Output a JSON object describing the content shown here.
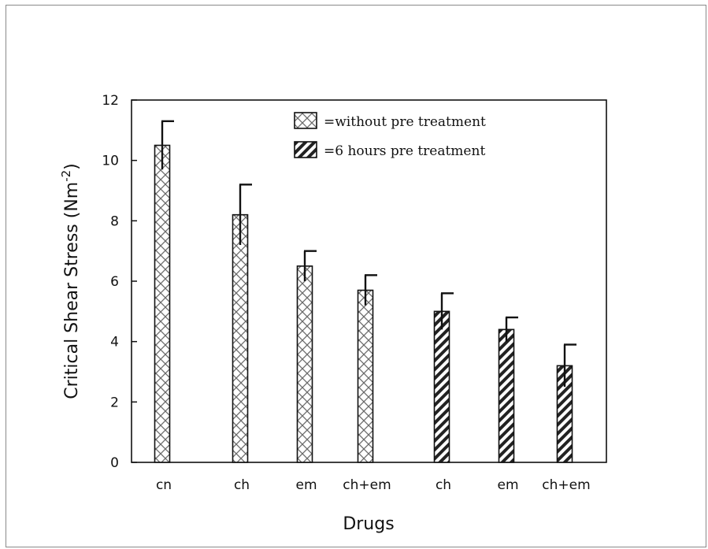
{
  "chart_data": {
    "type": "bar",
    "categories": [
      "cn",
      "ch",
      "em",
      "ch+em",
      "ch",
      "em",
      "ch+em"
    ],
    "values": [
      10.5,
      8.2,
      6.5,
      5.7,
      5.0,
      4.4,
      3.2
    ],
    "errors": [
      0.8,
      1.0,
      0.5,
      0.5,
      0.6,
      0.4,
      0.7
    ],
    "groups": [
      "without",
      "without",
      "without",
      "without",
      "6h",
      "6h",
      "6h"
    ],
    "title": "",
    "xlabel": "Drugs",
    "ylabel": "Critical Shear Stress (Nm",
    "ylabel_sup": "-2",
    "ylabel_close": ")",
    "ylim": [
      0,
      12
    ],
    "yticks": [
      0,
      2,
      4,
      6,
      8,
      10,
      12
    ],
    "grid": false,
    "legend_placement": "top-center",
    "legend": [
      {
        "group": "without",
        "label": "=without pre treatment",
        "pattern": "crosshatch"
      },
      {
        "group": "6h",
        "label": "=6 hours pre treatment",
        "pattern": "diagonal"
      }
    ]
  }
}
